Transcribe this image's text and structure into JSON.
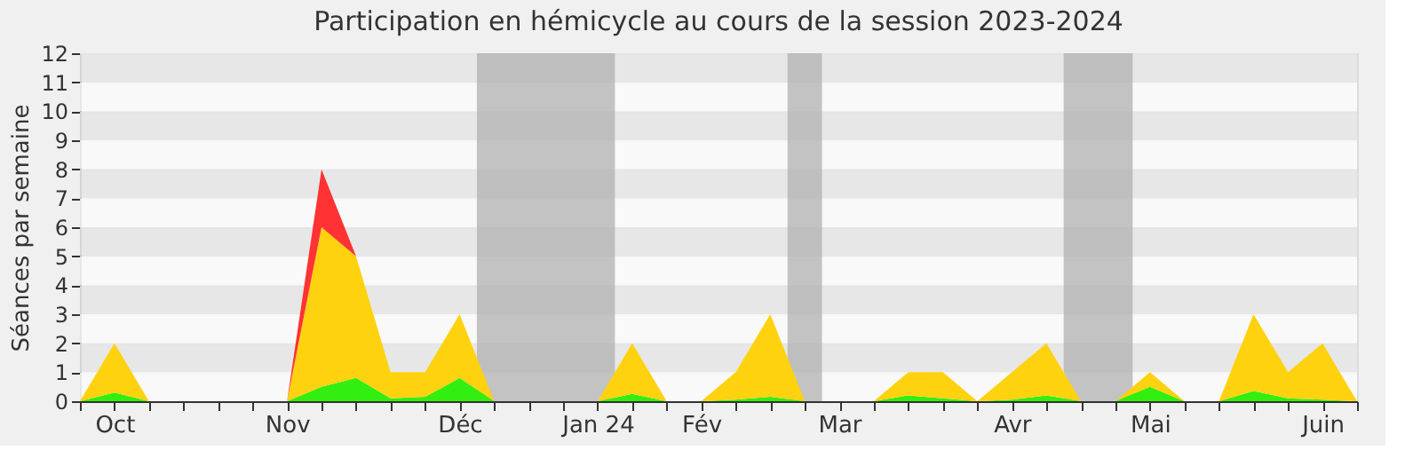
{
  "chart_data": {
    "type": "area",
    "title": "Participation en hémicycle au cours de la session 2023-2024",
    "ylabel": "Séances par semaine",
    "stacked": true,
    "grid": "y",
    "x": [
      "2023-10-02",
      "2023-10-09",
      "2023-10-16",
      "2023-10-23",
      "2023-10-30",
      "2023-11-06",
      "2023-11-13",
      "2023-11-20",
      "2023-11-27",
      "2023-12-04",
      "2023-12-11",
      "2023-12-18",
      "2023-12-25",
      "2024-01-01",
      "2024-01-08",
      "2024-01-15",
      "2024-01-22",
      "2024-01-29",
      "2024-02-05",
      "2024-02-12",
      "2024-02-19",
      "2024-02-26",
      "2024-03-04",
      "2024-03-11",
      "2024-03-18",
      "2024-03-25",
      "2024-04-01",
      "2024-04-08",
      "2024-04-15",
      "2024-04-22",
      "2024-04-29",
      "2024-05-06",
      "2024-05-13",
      "2024-05-20",
      "2024-05-27",
      "2024-06-03",
      "2024-06-10",
      "2024-06-17"
    ],
    "series": [
      {
        "color": "#33ee11",
        "values": [
          0,
          0.3,
          0,
          0,
          0,
          0,
          0,
          0.5,
          0.8,
          0.1,
          0.15,
          0.8,
          0,
          0,
          0,
          0,
          0.25,
          0,
          0,
          0.05,
          0.15,
          0,
          0,
          0,
          0.2,
          0.1,
          0,
          0.05,
          0.2,
          0,
          0,
          0.5,
          0,
          0,
          0.35,
          0.1,
          0.05,
          0
        ]
      },
      {
        "color": "#ffd20f",
        "values": [
          0,
          1.7,
          0,
          0,
          0,
          0,
          0,
          5.5,
          4.2,
          0.9,
          0.85,
          2.2,
          0,
          0,
          0,
          0,
          1.75,
          0,
          0,
          0.95,
          2.85,
          0,
          0,
          0,
          0.8,
          0.9,
          0,
          0.95,
          1.8,
          0,
          0,
          0.5,
          0,
          0,
          2.65,
          0.9,
          1.95,
          0
        ]
      },
      {
        "color": "#ff3333",
        "values": [
          0,
          0,
          0,
          0,
          0,
          0,
          0,
          2,
          0,
          0,
          0,
          0,
          0,
          0,
          0,
          0,
          0,
          0,
          0,
          0,
          0,
          0,
          0,
          0,
          0,
          0,
          0,
          0,
          0,
          0,
          0,
          0,
          0,
          0,
          0,
          0,
          0,
          0
        ]
      }
    ],
    "xlim": [
      "2023-10-02",
      "2024-06-17"
    ],
    "ylim": [
      0,
      12
    ],
    "yticks": [
      0,
      1,
      2,
      3,
      4,
      5,
      6,
      7,
      8,
      9,
      10,
      11,
      12
    ],
    "xticks": [
      {
        "value": "2023-10-02",
        "label": null
      },
      {
        "value": "2023-10-09",
        "label": "Oct"
      },
      {
        "value": "2023-10-16",
        "label": null
      },
      {
        "value": "2023-10-23",
        "label": null
      },
      {
        "value": "2023-10-30",
        "label": null
      },
      {
        "value": "2023-11-06",
        "label": null
      },
      {
        "value": "2023-11-13",
        "label": "Nov"
      },
      {
        "value": "2023-11-20",
        "label": null
      },
      {
        "value": "2023-11-27",
        "label": null
      },
      {
        "value": "2023-12-04",
        "label": null
      },
      {
        "value": "2023-12-11",
        "label": null
      },
      {
        "value": "2023-12-18",
        "label": "Déc"
      },
      {
        "value": "2023-12-25",
        "label": null
      },
      {
        "value": "2024-01-01",
        "label": null
      },
      {
        "value": "2024-01-08",
        "label": null
      },
      {
        "value": "2024-01-15",
        "label": "Jan 24"
      },
      {
        "value": "2024-01-22",
        "label": null
      },
      {
        "value": "2024-01-29",
        "label": null
      },
      {
        "value": "2024-02-05",
        "label": "Fév"
      },
      {
        "value": "2024-02-12",
        "label": null
      },
      {
        "value": "2024-02-19",
        "label": null
      },
      {
        "value": "2024-02-26",
        "label": null
      },
      {
        "value": "2024-03-04",
        "label": "Mar"
      },
      {
        "value": "2024-03-11",
        "label": null
      },
      {
        "value": "2024-03-18",
        "label": null
      },
      {
        "value": "2024-03-25",
        "label": null
      },
      {
        "value": "2024-04-01",
        "label": null
      },
      {
        "value": "2024-04-08",
        "label": "Avr"
      },
      {
        "value": "2024-04-15",
        "label": null
      },
      {
        "value": "2024-04-22",
        "label": null
      },
      {
        "value": "2024-04-29",
        "label": null
      },
      {
        "value": "2024-05-06",
        "label": "Mai"
      },
      {
        "value": "2024-05-13",
        "label": null
      },
      {
        "value": "2024-05-20",
        "label": null
      },
      {
        "value": "2024-05-27",
        "label": null
      },
      {
        "value": "2024-06-03",
        "label": null
      },
      {
        "value": "2024-06-10",
        "label": "Juin"
      },
      {
        "value": "2024-06-17",
        "label": null
      }
    ],
    "bands": [
      {
        "axis": "x",
        "from": "2023-12-21T12:00",
        "to": "2024-01-18T12:00",
        "color": "#b0b0b0"
      },
      {
        "axis": "x",
        "from": "2024-02-22T12:00",
        "to": "2024-02-29T12:00",
        "color": "#b0b0b0"
      },
      {
        "axis": "x",
        "from": "2024-04-18T12:00",
        "to": "2024-05-02T12:00",
        "color": "#b0b0b0"
      }
    ]
  }
}
